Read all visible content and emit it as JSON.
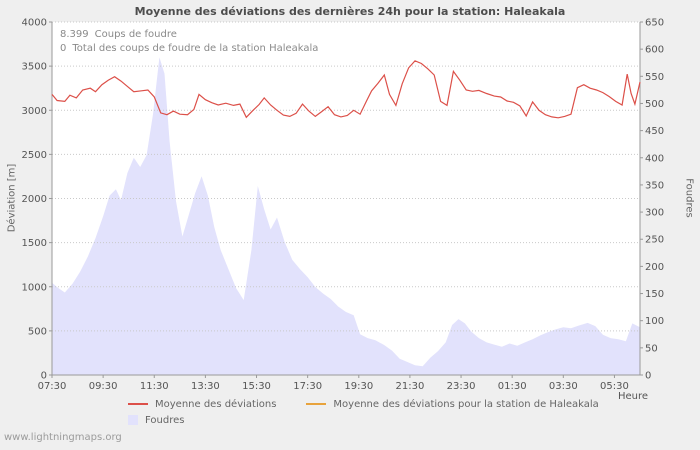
{
  "watermark": "www.lightningmaps.org",
  "chart_data": {
    "type": "line",
    "title": "Moyenne des déviations des dernières 24h pour la station: Haleakala",
    "xlabel": "Heure",
    "ylabel_left": "Déviation [m]",
    "ylabel_right": "Foudres",
    "grid": "horizontal-dotted",
    "legend_position": "bottom",
    "x_range_hours": [
      7.5,
      30.5
    ],
    "x_ticks": [
      {
        "hour": 7.5,
        "label": "07:30"
      },
      {
        "hour": 9.5,
        "label": "09:30"
      },
      {
        "hour": 11.5,
        "label": "11:30"
      },
      {
        "hour": 13.5,
        "label": "13:30"
      },
      {
        "hour": 15.5,
        "label": "15:30"
      },
      {
        "hour": 17.5,
        "label": "17:30"
      },
      {
        "hour": 19.5,
        "label": "19:30"
      },
      {
        "hour": 21.5,
        "label": "21:30"
      },
      {
        "hour": 23.5,
        "label": "23:30"
      },
      {
        "hour": 25.5,
        "label": "01:30"
      },
      {
        "hour": 27.5,
        "label": "03:30"
      },
      {
        "hour": 29.5,
        "label": "05:30"
      }
    ],
    "y_left": {
      "min": 0,
      "max": 4000,
      "step": 500,
      "tick_labels": [
        "0",
        "500",
        "1000",
        "1500",
        "2000",
        "2500",
        "3000",
        "3500",
        "4000"
      ]
    },
    "y_right": {
      "min": 0,
      "max": 650,
      "step": 50,
      "tick_labels": [
        "0",
        "50",
        "100",
        "150",
        "200",
        "250",
        "300",
        "350",
        "400",
        "450",
        "500",
        "550",
        "600",
        "650"
      ]
    },
    "annotations": [
      {
        "value": "8.399",
        "label": "Coups de foudre"
      },
      {
        "value": "0",
        "label": "Total des coups de foudre de la station Haleakala"
      }
    ],
    "series": [
      {
        "name": "Moyenne des déviations",
        "type": "line",
        "axis": "left",
        "color": "#dc5049",
        "points": [
          [
            7.5,
            3180
          ],
          [
            7.7,
            3110
          ],
          [
            8.0,
            3100
          ],
          [
            8.2,
            3170
          ],
          [
            8.45,
            3140
          ],
          [
            8.7,
            3230
          ],
          [
            9.0,
            3250
          ],
          [
            9.2,
            3210
          ],
          [
            9.45,
            3290
          ],
          [
            9.7,
            3340
          ],
          [
            9.95,
            3380
          ],
          [
            10.2,
            3330
          ],
          [
            10.45,
            3270
          ],
          [
            10.7,
            3210
          ],
          [
            11.0,
            3220
          ],
          [
            11.25,
            3230
          ],
          [
            11.5,
            3150
          ],
          [
            11.75,
            2970
          ],
          [
            12.0,
            2950
          ],
          [
            12.25,
            2990
          ],
          [
            12.5,
            2955
          ],
          [
            12.8,
            2950
          ],
          [
            13.05,
            3010
          ],
          [
            13.25,
            3180
          ],
          [
            13.5,
            3120
          ],
          [
            13.75,
            3085
          ],
          [
            14.0,
            3060
          ],
          [
            14.3,
            3080
          ],
          [
            14.6,
            3055
          ],
          [
            14.85,
            3070
          ],
          [
            15.1,
            2920
          ],
          [
            15.35,
            2995
          ],
          [
            15.6,
            3065
          ],
          [
            15.8,
            3140
          ],
          [
            16.05,
            3060
          ],
          [
            16.3,
            3000
          ],
          [
            16.55,
            2945
          ],
          [
            16.8,
            2930
          ],
          [
            17.05,
            2965
          ],
          [
            17.3,
            3070
          ],
          [
            17.55,
            2990
          ],
          [
            17.8,
            2930
          ],
          [
            18.05,
            2985
          ],
          [
            18.3,
            3040
          ],
          [
            18.55,
            2950
          ],
          [
            18.8,
            2925
          ],
          [
            19.05,
            2940
          ],
          [
            19.3,
            3000
          ],
          [
            19.55,
            2955
          ],
          [
            19.8,
            3105
          ],
          [
            20.0,
            3220
          ],
          [
            20.25,
            3305
          ],
          [
            20.5,
            3400
          ],
          [
            20.7,
            3180
          ],
          [
            20.95,
            3055
          ],
          [
            21.2,
            3300
          ],
          [
            21.45,
            3480
          ],
          [
            21.7,
            3560
          ],
          [
            21.95,
            3530
          ],
          [
            22.2,
            3470
          ],
          [
            22.45,
            3400
          ],
          [
            22.7,
            3100
          ],
          [
            22.95,
            3055
          ],
          [
            23.2,
            3440
          ],
          [
            23.45,
            3340
          ],
          [
            23.7,
            3230
          ],
          [
            23.95,
            3215
          ],
          [
            24.2,
            3225
          ],
          [
            24.5,
            3190
          ],
          [
            24.8,
            3160
          ],
          [
            25.05,
            3150
          ],
          [
            25.3,
            3105
          ],
          [
            25.55,
            3090
          ],
          [
            25.8,
            3050
          ],
          [
            26.05,
            2935
          ],
          [
            26.3,
            3095
          ],
          [
            26.55,
            3000
          ],
          [
            26.8,
            2950
          ],
          [
            27.05,
            2925
          ],
          [
            27.3,
            2915
          ],
          [
            27.55,
            2930
          ],
          [
            27.8,
            2955
          ],
          [
            28.05,
            3255
          ],
          [
            28.3,
            3290
          ],
          [
            28.55,
            3250
          ],
          [
            28.8,
            3230
          ],
          [
            29.05,
            3200
          ],
          [
            29.3,
            3155
          ],
          [
            29.55,
            3100
          ],
          [
            29.8,
            3060
          ],
          [
            30.0,
            3410
          ],
          [
            30.15,
            3190
          ],
          [
            30.3,
            3070
          ],
          [
            30.5,
            3320
          ]
        ]
      },
      {
        "name": "Moyenne des déviations pour la station de Haleakala",
        "type": "line",
        "axis": "left",
        "color": "#e8a33c",
        "points": []
      },
      {
        "name": "Foudres",
        "type": "area",
        "axis": "right",
        "color": "#e2e2fc",
        "points": [
          [
            7.5,
            170
          ],
          [
            7.75,
            160
          ],
          [
            8.0,
            152
          ],
          [
            8.3,
            168
          ],
          [
            8.6,
            190
          ],
          [
            8.9,
            218
          ],
          [
            9.2,
            252
          ],
          [
            9.5,
            292
          ],
          [
            9.75,
            330
          ],
          [
            10.0,
            342
          ],
          [
            10.2,
            322
          ],
          [
            10.45,
            372
          ],
          [
            10.7,
            400
          ],
          [
            10.95,
            383
          ],
          [
            11.2,
            405
          ],
          [
            11.45,
            480
          ],
          [
            11.7,
            585
          ],
          [
            11.9,
            555
          ],
          [
            12.1,
            430
          ],
          [
            12.35,
            320
          ],
          [
            12.6,
            255
          ],
          [
            12.85,
            295
          ],
          [
            13.1,
            335
          ],
          [
            13.35,
            366
          ],
          [
            13.6,
            330
          ],
          [
            13.85,
            272
          ],
          [
            14.1,
            230
          ],
          [
            14.4,
            195
          ],
          [
            14.7,
            160
          ],
          [
            15.0,
            138
          ],
          [
            15.3,
            230
          ],
          [
            15.55,
            348
          ],
          [
            15.8,
            305
          ],
          [
            16.05,
            268
          ],
          [
            16.3,
            290
          ],
          [
            16.6,
            245
          ],
          [
            16.9,
            212
          ],
          [
            17.2,
            195
          ],
          [
            17.5,
            180
          ],
          [
            17.8,
            162
          ],
          [
            18.1,
            150
          ],
          [
            18.4,
            140
          ],
          [
            18.7,
            126
          ],
          [
            19.0,
            116
          ],
          [
            19.3,
            110
          ],
          [
            19.55,
            75
          ],
          [
            19.85,
            68
          ],
          [
            20.15,
            64
          ],
          [
            20.5,
            55
          ],
          [
            20.8,
            45
          ],
          [
            21.1,
            30
          ],
          [
            21.4,
            24
          ],
          [
            21.7,
            18
          ],
          [
            22.0,
            16
          ],
          [
            22.3,
            32
          ],
          [
            22.6,
            44
          ],
          [
            22.9,
            60
          ],
          [
            23.15,
            92
          ],
          [
            23.4,
            103
          ],
          [
            23.65,
            95
          ],
          [
            23.9,
            80
          ],
          [
            24.2,
            68
          ],
          [
            24.5,
            60
          ],
          [
            24.8,
            56
          ],
          [
            25.1,
            52
          ],
          [
            25.4,
            58
          ],
          [
            25.7,
            54
          ],
          [
            26.0,
            60
          ],
          [
            26.3,
            66
          ],
          [
            26.6,
            73
          ],
          [
            26.9,
            79
          ],
          [
            27.2,
            84
          ],
          [
            27.5,
            88
          ],
          [
            27.8,
            86
          ],
          [
            28.1,
            91
          ],
          [
            28.45,
            96
          ],
          [
            28.75,
            90
          ],
          [
            29.05,
            74
          ],
          [
            29.35,
            68
          ],
          [
            29.65,
            66
          ],
          [
            29.95,
            62
          ],
          [
            30.2,
            95
          ],
          [
            30.5,
            88
          ]
        ]
      }
    ]
  }
}
